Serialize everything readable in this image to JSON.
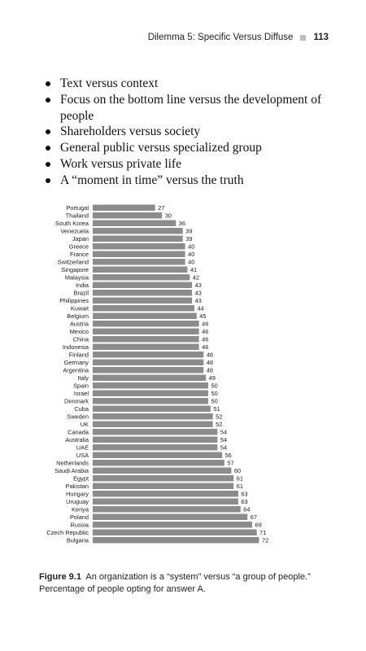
{
  "header": {
    "running_title": "Dilemma 5: Specific Versus Diffuse",
    "page_number": "113"
  },
  "bullets": [
    "Text versus context",
    "Focus on the bottom line versus the development of people",
    "Shareholders versus society",
    "General public versus specialized group",
    "Work versus private life",
    "A “moment in time” versus the truth"
  ],
  "chart_data": {
    "type": "bar",
    "orientation": "horizontal",
    "categories": [
      "Portugal",
      "Thailand",
      "South Korea",
      "Venezuela",
      "Japan",
      "Greece",
      "France",
      "Switzerland",
      "Singapore",
      "Malaysia",
      "India",
      "Brazil",
      "Philippines",
      "Kuwait",
      "Belgium",
      "Austria",
      "Mexico",
      "China",
      "Indonesia",
      "Finland",
      "Germany",
      "Argentina",
      "Italy",
      "Spain",
      "Israel",
      "Denmark",
      "Cuba",
      "Sweden",
      "UK",
      "Canada",
      "Australia",
      "UAE",
      "USA",
      "Netherlands",
      "Saudi Arabia",
      "Egypt",
      "Pakistan",
      "Hungary",
      "Uruguay",
      "Kenya",
      "Poland",
      "Russia",
      "Czech Republic",
      "Bulgaria"
    ],
    "values": [
      27,
      30,
      36,
      39,
      39,
      40,
      40,
      40,
      41,
      42,
      43,
      43,
      43,
      44,
      45,
      46,
      46,
      46,
      46,
      48,
      48,
      48,
      49,
      50,
      50,
      50,
      51,
      52,
      52,
      54,
      54,
      54,
      56,
      57,
      60,
      61,
      61,
      63,
      63,
      64,
      67,
      69,
      71,
      72
    ],
    "xlim": [
      0,
      100
    ],
    "xticks": [
      0,
      5,
      10,
      15,
      20,
      25,
      30,
      35,
      40,
      45,
      50,
      55,
      60,
      65,
      70,
      75,
      80,
      85,
      90,
      95,
      100
    ],
    "bar_color": "#8c8c8c",
    "grid": false
  },
  "caption": {
    "label": "Figure 9.1",
    "text": "An organization is a “system” versus “a group of people.” Percentage of people opting for answer A."
  }
}
